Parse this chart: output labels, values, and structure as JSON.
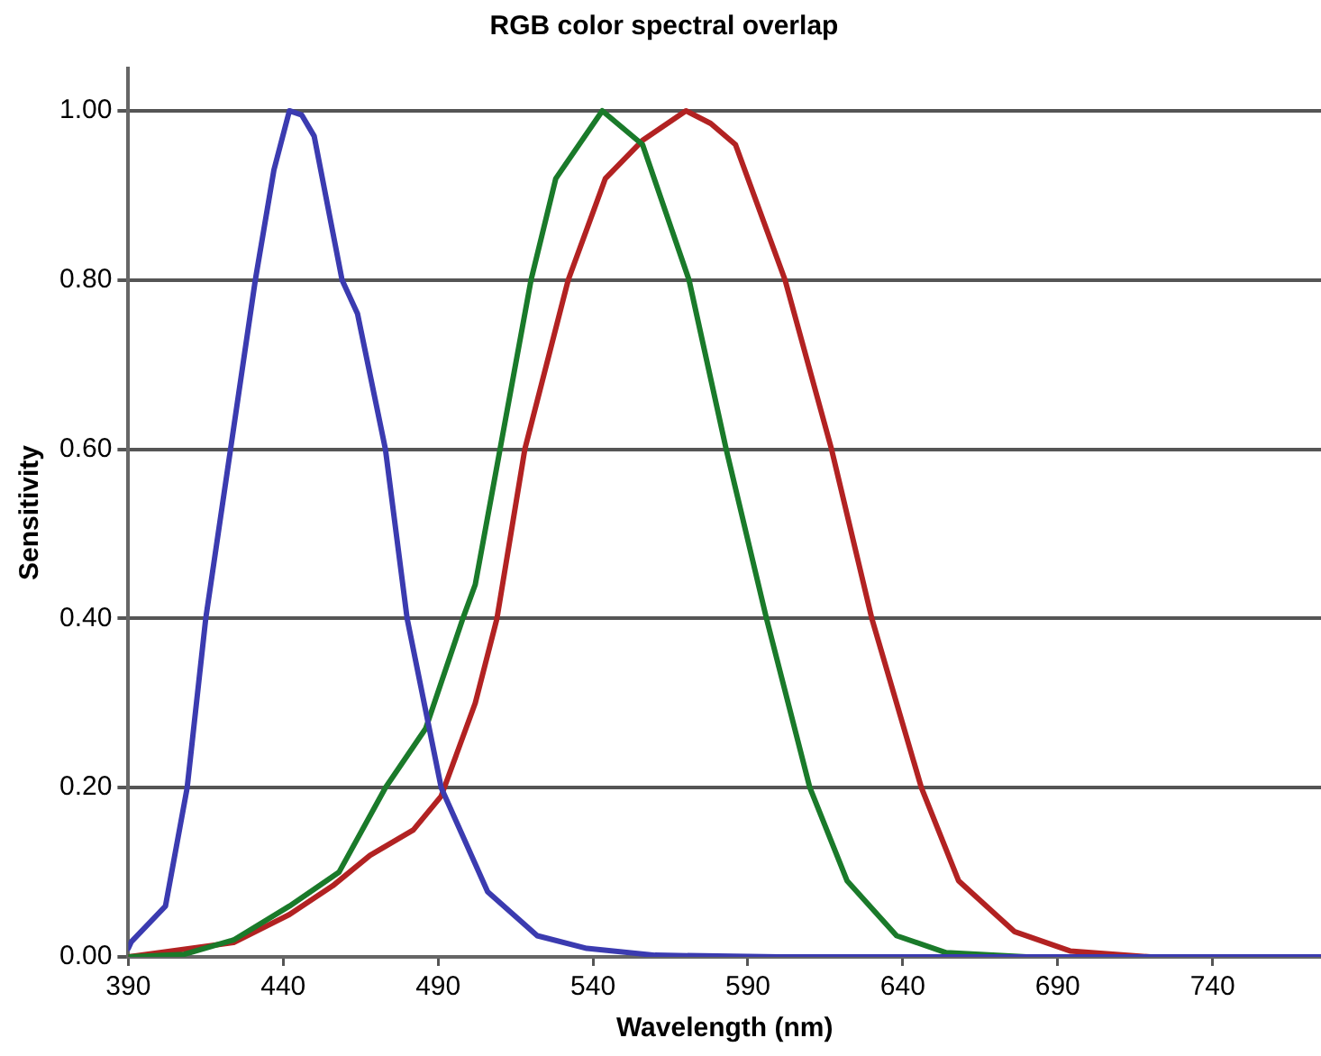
{
  "chart_data": {
    "type": "line",
    "title": "RGB color spectral overlap",
    "xlabel": "Wavelength (nm)",
    "ylabel": "Sensitivity",
    "xlim": [
      390,
      775
    ],
    "xticks": [
      390,
      440,
      490,
      540,
      590,
      640,
      690,
      740
    ],
    "ylim": [
      0,
      1.05
    ],
    "yticks": [
      {
        "value": 0,
        "label": "0.00"
      },
      {
        "value": 0.2,
        "label": "0.20"
      },
      {
        "value": 0.4,
        "label": "0.40"
      },
      {
        "value": 0.6,
        "label": "0.60"
      },
      {
        "value": 0.8,
        "label": "0.80"
      },
      {
        "value": 1,
        "label": "1.00"
      }
    ],
    "grid": "y",
    "legend": false,
    "marker": "none",
    "line_style": "solid",
    "series": [
      {
        "color": "#3b3bb0",
        "x": [
          390,
          391,
          402,
          409,
          415,
          423,
          431,
          437,
          442,
          446,
          450,
          459,
          464,
          473,
          480,
          491,
          506,
          522,
          538,
          560,
          600,
          700,
          775
        ],
        "values": [
          0.01,
          0.018,
          0.06,
          0.2,
          0.4,
          0.6,
          0.8,
          0.93,
          1.0,
          0.995,
          0.97,
          0.8,
          0.76,
          0.6,
          0.4,
          0.2,
          0.077,
          0.025,
          0.01,
          0.002,
          0,
          0,
          0
        ]
      },
      {
        "color": "#1a7a2a",
        "x": [
          390,
          408,
          424,
          442,
          458,
          473,
          486,
          498,
          502,
          510,
          520,
          528,
          543,
          556,
          571,
          583,
          596,
          610,
          622,
          638,
          654,
          680,
          775
        ],
        "values": [
          0,
          0.003,
          0.02,
          0.06,
          0.1,
          0.2,
          0.27,
          0.4,
          0.44,
          0.6,
          0.8,
          0.92,
          1.0,
          0.96,
          0.8,
          0.6,
          0.4,
          0.2,
          0.09,
          0.025,
          0.005,
          0,
          0
        ]
      },
      {
        "color": "#b22222",
        "x": [
          390,
          424,
          442,
          456,
          468,
          482,
          491,
          502,
          509,
          518,
          532,
          544,
          556,
          570,
          578,
          586,
          602,
          617,
          630,
          646,
          658,
          676,
          694,
          720,
          775
        ],
        "values": [
          0,
          0.017,
          0.05,
          0.084,
          0.12,
          0.15,
          0.19,
          0.3,
          0.4,
          0.6,
          0.8,
          0.92,
          0.965,
          1.0,
          0.985,
          0.96,
          0.8,
          0.6,
          0.4,
          0.2,
          0.09,
          0.03,
          0.007,
          0,
          0
        ]
      }
    ]
  }
}
